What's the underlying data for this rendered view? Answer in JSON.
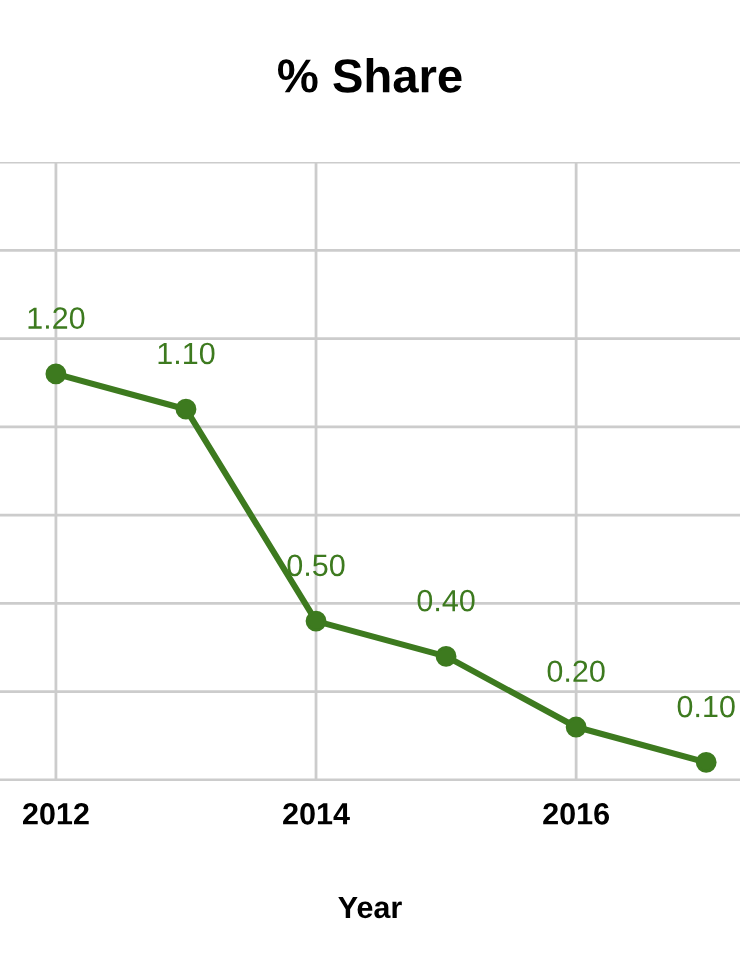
{
  "chart_data": {
    "type": "line",
    "title": "% Share",
    "xlabel": "Year",
    "x": [
      2012,
      2013,
      2014,
      2015,
      2016,
      2017
    ],
    "series": [
      {
        "color": "#3d7a1f",
        "values": [
          1.2,
          1.1,
          0.5,
          0.4,
          0.2,
          0.1
        ],
        "value_labels": [
          "1.20",
          "1.10",
          "0.50",
          "0.40",
          "0.20",
          "0.10"
        ]
      }
    ],
    "xlim": [
      2011.57,
      2017.26
    ],
    "xticks": [
      2012,
      2014,
      2016
    ],
    "ylim": [
      0.05,
      1.8
    ],
    "yticks": [
      {
        "value": 0.05,
        "label": null
      },
      {
        "value": 0.3,
        "label": null
      },
      {
        "value": 0.55,
        "label": null
      },
      {
        "value": 0.8,
        "label": null
      },
      {
        "value": 1.05,
        "label": null
      },
      {
        "value": 1.3,
        "label": null
      },
      {
        "value": 1.55,
        "label": null
      },
      {
        "value": 1.8,
        "label": null
      }
    ],
    "tick_labels": "x",
    "grid": true,
    "marker": "circle",
    "line_style": "solid",
    "legend": false
  }
}
